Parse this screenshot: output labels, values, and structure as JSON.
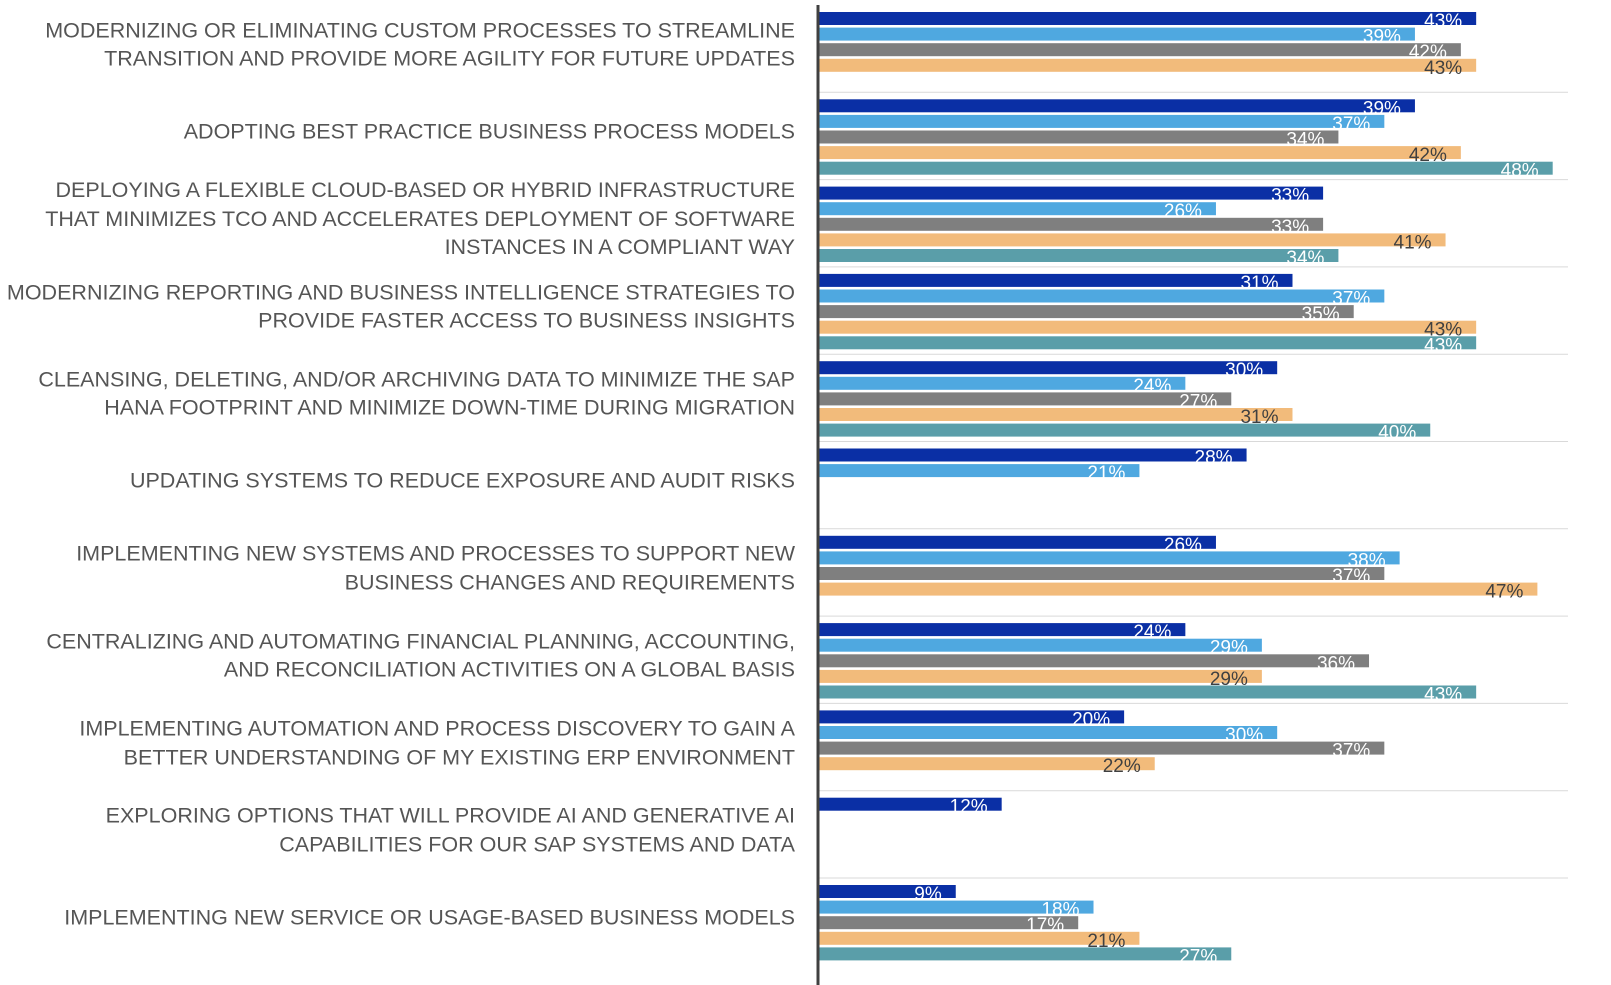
{
  "chart_data": {
    "type": "bar",
    "orientation": "horizontal",
    "categories": [
      "MODERNIZING OR ELIMINATING CUSTOM PROCESSES TO STREAMLINE TRANSITION AND PROVIDE MORE AGILITY FOR FUTURE UPDATES",
      "ADOPTING BEST PRACTICE BUSINESS PROCESS MODELS",
      "DEPLOYING A FLEXIBLE CLOUD-BASED OR HYBRID INFRASTRUCTURE THAT MINIMIZES TCO AND ACCELERATES DEPLOYMENT OF SOFTWARE INSTANCES IN A COMPLIANT WAY",
      "MODERNIZING REPORTING AND BUSINESS INTELLIGENCE STRATEGIES TO PROVIDE FASTER ACCESS TO BUSINESS INSIGHTS",
      "CLEANSING, DELETING, AND/OR ARCHIVING DATA TO MINIMIZE THE SAP HANA FOOTPRINT AND MINIMIZE DOWN-TIME DURING MIGRATION",
      "UPDATING SYSTEMS TO REDUCE EXPOSURE AND AUDIT RISKS",
      "IMPLEMENTING NEW SYSTEMS AND PROCESSES TO SUPPORT NEW BUSINESS CHANGES AND REQUIREMENTS",
      "CENTRALIZING AND AUTOMATING FINANCIAL PLANNING, ACCOUNTING, AND RECONCILIATION ACTIVITIES ON A GLOBAL BASIS",
      "IMPLEMENTING AUTOMATION AND PROCESS DISCOVERY TO GAIN A BETTER UNDERSTANDING OF MY EXISTING ERP ENVIRONMENT",
      "EXPLORING OPTIONS THAT WILL PROVIDE AI AND GENERATIVE AI CAPABILITIES FOR OUR SAP SYSTEMS AND DATA",
      "IMPLEMENTING NEW SERVICE OR USAGE-BASED BUSINESS MODELS"
    ],
    "series": [
      {
        "color": "#0a2fa5",
        "label_color": "#ffffff",
        "values": [
          43,
          39,
          33,
          31,
          30,
          28,
          26,
          24,
          20,
          12,
          9
        ],
        "value_labels": [
          "43%",
          "39%",
          "33%",
          "31%",
          "30%",
          "28%",
          "26%",
          "24%",
          "20%",
          "12%",
          "9%"
        ]
      },
      {
        "color": "#4fa8e0",
        "label_color": "#ffffff",
        "values": [
          39,
          37,
          26,
          37,
          24,
          21,
          38,
          29,
          30,
          null,
          18
        ],
        "value_labels": [
          "39%",
          "37%",
          "26%",
          "37%",
          "24%",
          "21%",
          "38%",
          "29%",
          "30%",
          null,
          "18%"
        ]
      },
      {
        "color": "#7f7f7f",
        "label_color": "#ffffff",
        "values": [
          42,
          34,
          33,
          35,
          27,
          null,
          37,
          36,
          37,
          null,
          17
        ],
        "value_labels": [
          "42%",
          "34%",
          "33%",
          "35%",
          "27%",
          null,
          "37%",
          "36%",
          "37%",
          null,
          "17%"
        ]
      },
      {
        "color": "#f2bb7b",
        "label_color": "#404040",
        "values": [
          43,
          42,
          41,
          43,
          31,
          null,
          47,
          29,
          22,
          null,
          21
        ],
        "value_labels": [
          "43%",
          "42%",
          "41%",
          "43%",
          "31%",
          null,
          "47%",
          "29%",
          "22%",
          null,
          "21%"
        ]
      },
      {
        "color": "#5a9ea9",
        "label_color": "#ffffff",
        "values": [
          null,
          48,
          34,
          43,
          40,
          null,
          null,
          43,
          null,
          null,
          27
        ],
        "value_labels": [
          null,
          "48%",
          "34%",
          "43%",
          "40%",
          null,
          null,
          "43%",
          null,
          null,
          "27%"
        ]
      }
    ],
    "xlim": [
      0,
      49
    ]
  }
}
